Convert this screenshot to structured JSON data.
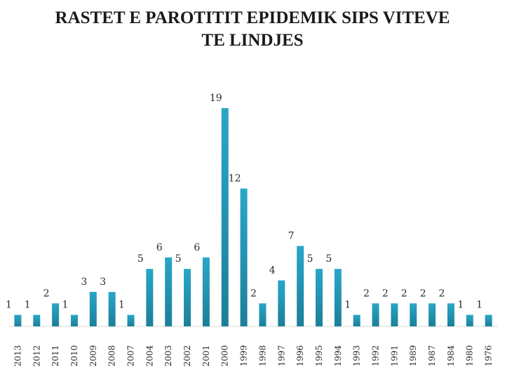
{
  "chart_data": {
    "type": "bar",
    "title": "RASTET E PAROTITIT EPIDEMIK SIPS VITEVE TE LINDJES",
    "title_lines": [
      "RASTET E PAROTITIT EPIDEMIK SIPS VITEVE",
      "TE LINDJES"
    ],
    "categories": [
      "2013",
      "2012",
      "2011",
      "2010",
      "2009",
      "2008",
      "2007",
      "2004",
      "2003",
      "2002",
      "2001",
      "2000",
      "1999",
      "1998",
      "1997",
      "1996",
      "1995",
      "1994",
      "1993",
      "1992",
      "1991",
      "1989",
      "1987",
      "1984",
      "1980",
      "1976"
    ],
    "values": [
      1,
      1,
      2,
      1,
      3,
      3,
      1,
      5,
      6,
      5,
      6,
      19,
      12,
      2,
      4,
      7,
      5,
      5,
      1,
      2,
      2,
      2,
      2,
      2,
      1,
      1
    ],
    "xlabel": "",
    "ylabel": "",
    "ylim": [
      0,
      19
    ],
    "grid": false,
    "legend": "none",
    "bar_color": "#2aa6c9",
    "bar_color_dark": "#1b7f99"
  }
}
